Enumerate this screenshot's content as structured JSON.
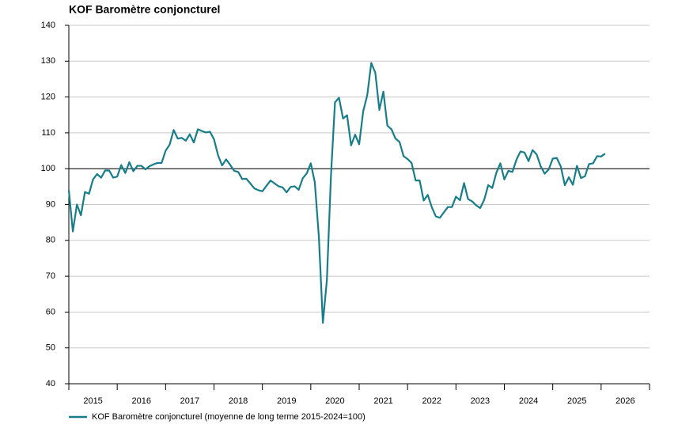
{
  "chart_data": {
    "type": "line",
    "title": "KOF Baromètre conjoncturel",
    "x": [
      2015,
      2015.083,
      2015.167,
      2015.25,
      2015.333,
      2015.417,
      2015.5,
      2015.583,
      2015.667,
      2015.75,
      2015.833,
      2015.917,
      2016,
      2016.083,
      2016.167,
      2016.25,
      2016.333,
      2016.417,
      2016.5,
      2016.583,
      2016.667,
      2016.75,
      2016.833,
      2016.917,
      2017,
      2017.083,
      2017.167,
      2017.25,
      2017.333,
      2017.417,
      2017.5,
      2017.583,
      2017.667,
      2017.75,
      2017.833,
      2017.917,
      2018,
      2018.083,
      2018.167,
      2018.25,
      2018.333,
      2018.417,
      2018.5,
      2018.583,
      2018.667,
      2018.75,
      2018.833,
      2018.917,
      2019,
      2019.083,
      2019.167,
      2019.25,
      2019.333,
      2019.417,
      2019.5,
      2019.583,
      2019.667,
      2019.75,
      2019.833,
      2019.917,
      2020,
      2020.083,
      2020.167,
      2020.25,
      2020.333,
      2020.417,
      2020.5,
      2020.583,
      2020.667,
      2020.75,
      2020.833,
      2020.917,
      2021,
      2021.083,
      2021.167,
      2021.25,
      2021.333,
      2021.417,
      2021.5,
      2021.583,
      2021.667,
      2021.75,
      2021.833,
      2021.917,
      2022,
      2022.083,
      2022.167,
      2022.25,
      2022.333,
      2022.417,
      2022.5,
      2022.583,
      2022.667,
      2022.75,
      2022.833,
      2022.917,
      2023,
      2023.083,
      2023.167,
      2023.25,
      2023.333,
      2023.417,
      2023.5,
      2023.583,
      2023.667,
      2023.75,
      2023.833,
      2023.917,
      2024,
      2024.083,
      2024.167,
      2024.25,
      2024.333,
      2024.417,
      2024.5,
      2024.583,
      2024.667,
      2024.75,
      2024.833,
      2024.917,
      2025,
      2025.083,
      2025.167,
      2025.25,
      2025.333,
      2025.417,
      2025.5,
      2025.583,
      2025.667,
      2025.75,
      2025.833,
      2025.917,
      2026,
      2026.083
    ],
    "series": [
      {
        "name": "KOF Baromètre conjoncturel (moyenne de long terme 2015-2024=100)",
        "color": "#177e89",
        "values": [
          94,
          82.5,
          90,
          87,
          93.5,
          93,
          97,
          98.5,
          97.5,
          99.5,
          99.5,
          97.5,
          97.8,
          101,
          98.8,
          101.8,
          99.3,
          100.8,
          100.8,
          99.8,
          100.7,
          101.2,
          101.6,
          101.6,
          105,
          106.7,
          110.8,
          108.4,
          108.6,
          107.8,
          109.6,
          107.3,
          111,
          110.5,
          110.1,
          110.3,
          108.2,
          103.8,
          100.9,
          102.6,
          101.1,
          99.4,
          99.1,
          97.1,
          97.2,
          95.9,
          94.5,
          94,
          93.7,
          95.2,
          96.7,
          95.9,
          95.1,
          94.8,
          93.4,
          94.9,
          95.1,
          94.1,
          97.3,
          98.7,
          101.5,
          96.2,
          81,
          57,
          69,
          98,
          118.5,
          119.8,
          114,
          114.9,
          106.5,
          109.5,
          106.8,
          116,
          120.5,
          129.5,
          126.8,
          116.4,
          121.5,
          112,
          111,
          108.4,
          107.5,
          103.5,
          102.7,
          101.6,
          96.7,
          96.7,
          91.1,
          92.7,
          89.3,
          86.7,
          86.3,
          87.8,
          89.3,
          89.3,
          92.2,
          91.2,
          96,
          91.5,
          90.9,
          89.8,
          89,
          91.3,
          95.4,
          94.6,
          98.8,
          101.5,
          97,
          99.4,
          99.1,
          102.5,
          104.8,
          104.5,
          102.1,
          105.2,
          104,
          100.7,
          98.6,
          99.8,
          102.8,
          103,
          100.6,
          95.4,
          97.6,
          95.5,
          100.8,
          97.4,
          97.9,
          101.3,
          101.5,
          103.5,
          103.4,
          104.2
        ]
      }
    ],
    "xlim": [
      2015,
      2027
    ],
    "xticks": [
      2015,
      2016,
      2017,
      2018,
      2019,
      2020,
      2021,
      2022,
      2023,
      2024,
      2025,
      2026,
      2027
    ],
    "year_labels": [
      "2015",
      "2016",
      "2017",
      "2018",
      "2019",
      "2020",
      "2021",
      "2022",
      "2023",
      "2024",
      "2025",
      "2026"
    ],
    "ylim": [
      40,
      140
    ],
    "yticks": [
      40,
      50,
      60,
      70,
      80,
      90,
      100,
      110,
      120,
      130,
      140
    ],
    "reference_line": 100,
    "grid": true
  }
}
